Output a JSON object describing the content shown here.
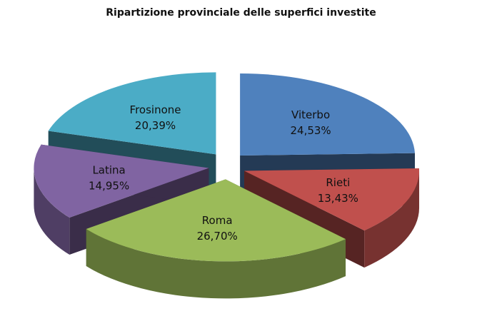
{
  "chart_data": {
    "type": "pie",
    "title": "Ripartizione provinciale delle superfici investite",
    "labels": [
      "Viterbo",
      "Rieti",
      "Roma",
      "Latina",
      "Frosinone"
    ],
    "values": [
      24.53,
      13.43,
      26.7,
      14.95,
      20.39
    ],
    "value_labels": [
      "24,53%",
      "13,43%",
      "26,70%",
      "14,95%",
      "20,39%"
    ],
    "colors": [
      "#4f81bd",
      "#c0504d",
      "#9bbb59",
      "#8064a2",
      "#4bacc6"
    ],
    "exploded": true,
    "legend": "none"
  }
}
